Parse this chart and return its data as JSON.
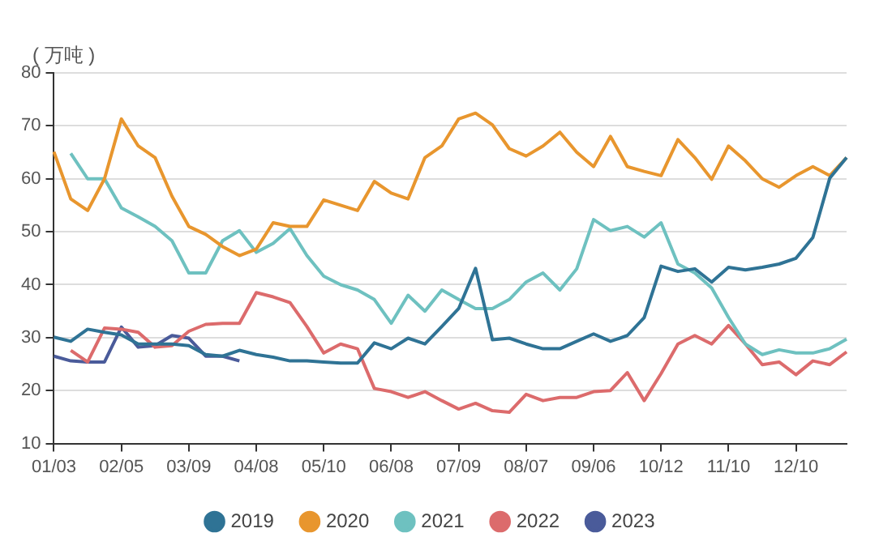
{
  "chart_data": {
    "type": "line",
    "ylabel": "( 万吨 )",
    "categories": [
      "01/03",
      null,
      null,
      null,
      "02/05",
      null,
      null,
      null,
      "03/09",
      null,
      null,
      null,
      "04/08",
      null,
      null,
      null,
      "05/10",
      null,
      null,
      null,
      "06/08",
      null,
      null,
      null,
      "07/09",
      null,
      null,
      null,
      "08/07",
      null,
      null,
      null,
      "09/06",
      null,
      null,
      null,
      "10/12",
      null,
      null,
      null,
      "11/10",
      null,
      null,
      null,
      "12/10",
      null,
      null,
      null
    ],
    "ylim": [
      10,
      80
    ],
    "yticks": [
      10,
      20,
      30,
      40,
      50,
      60,
      70,
      80
    ],
    "grid": "y",
    "legend": "bottom",
    "marker": "none",
    "line_style": "solid",
    "series": [
      {
        "name": "2019",
        "color": "#2f7395",
        "values": [
          30.1,
          29.3,
          31.6,
          31,
          30.5,
          28.8,
          28.8,
          28.8,
          28.5,
          26.8,
          26.5,
          27.6,
          26.8,
          26.3,
          25.6,
          25.6,
          25.4,
          25.2,
          25.2,
          29,
          27.9,
          29.9,
          28.8,
          32.1,
          35.5,
          43.1,
          29.6,
          29.9,
          28.8,
          27.9,
          27.9,
          29.3,
          30.7,
          29.3,
          30.4,
          33.8,
          43.5,
          42.5,
          43,
          40.5,
          43.3,
          42.8,
          43.3,
          43.9,
          45,
          48.9,
          60.1,
          64
        ]
      },
      {
        "name": "2020",
        "color": "#e8962e",
        "values": [
          65.1,
          56.2,
          54,
          60,
          71.3,
          66.2,
          64,
          56.7,
          51,
          49.5,
          47.2,
          45.5,
          46.7,
          51.7,
          51,
          51,
          56,
          55,
          54,
          59.5,
          57.3,
          56.2,
          64,
          66.2,
          71.3,
          72.4,
          70.2,
          65.7,
          64.3,
          66.2,
          68.8,
          65,
          62.3,
          68,
          62.3,
          61.4,
          60.6,
          67.4,
          64,
          59.9,
          66.2,
          63.4,
          60,
          58.4,
          60.6,
          62.3,
          60.6,
          64
        ]
      },
      {
        "name": "2021",
        "color": "#6ec1c0",
        "values": [
          null,
          64.8,
          60,
          60,
          54.5,
          52.8,
          51,
          48.3,
          42.2,
          42.2,
          48.3,
          50.2,
          46.1,
          47.8,
          50.6,
          45.5,
          41.6,
          40,
          39,
          37.2,
          32.7,
          38,
          35,
          39,
          37.2,
          35.5,
          35.5,
          37.2,
          40.5,
          42.2,
          39,
          43,
          52.3,
          50.2,
          51,
          49,
          51.7,
          43.9,
          42.2,
          39.4,
          33.8,
          28.8,
          26.8,
          27.7,
          27.1,
          27.1,
          27.9,
          29.7
        ]
      },
      {
        "name": "2022",
        "color": "#dc6b6c",
        "values": [
          null,
          27.6,
          25.4,
          31.8,
          31.6,
          31,
          28.2,
          28.5,
          31.2,
          32.5,
          32.7,
          32.7,
          38.5,
          37.7,
          36.6,
          32.1,
          27.1,
          28.8,
          27.9,
          20.4,
          19.8,
          18.7,
          19.8,
          18.1,
          16.5,
          17.6,
          16.2,
          15.9,
          19.3,
          18.1,
          18.7,
          18.7,
          19.8,
          20,
          23.4,
          18.1,
          23.2,
          28.8,
          30.4,
          28.8,
          32.3,
          28.8,
          24.9,
          25.4,
          23,
          25.6,
          24.9,
          27.3
        ]
      },
      {
        "name": "2023",
        "color": "#4a5b9a",
        "values": [
          26.5,
          25.6,
          25.4,
          25.4,
          32,
          28.2,
          28.5,
          30.4,
          29.9,
          26.5,
          26.5,
          25.6,
          null,
          null,
          null,
          null,
          null,
          null,
          null,
          null,
          null,
          null,
          null,
          null,
          null,
          null,
          null,
          null,
          null,
          null,
          null,
          null,
          null,
          null,
          null,
          null,
          null,
          null,
          null,
          null,
          null,
          null,
          null,
          null,
          null,
          null,
          null,
          null
        ]
      }
    ]
  }
}
